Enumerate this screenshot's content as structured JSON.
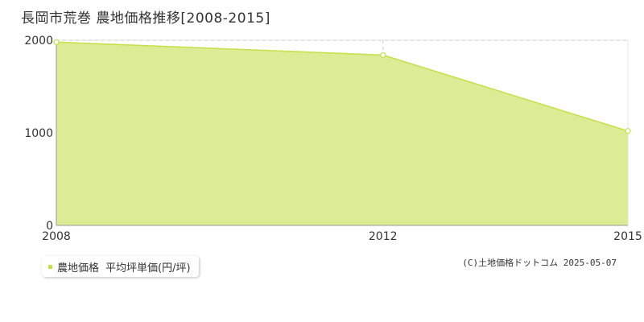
{
  "title": "長岡市荒巻 農地価格推移[2008-2015]",
  "colors": {
    "fill": "#dcec94",
    "line": "#c4e04a",
    "grid": "#cccccc",
    "axis": "#999999"
  },
  "chart_data": {
    "type": "area",
    "x": [
      2008,
      2012,
      2015
    ],
    "series": [
      {
        "name": "農地価格 平均坪単価(円/坪)",
        "values": [
          1980,
          1840,
          1020
        ]
      }
    ],
    "xticks": [
      "2008",
      "2012",
      "2015"
    ],
    "yticks": [
      "0",
      "1000",
      "2000"
    ],
    "ylim": [
      0,
      2000
    ],
    "xlim": [
      2008,
      2015
    ],
    "grid": true,
    "legend_position": "bottom-left"
  },
  "legend": {
    "category": "農地価格",
    "label": "平均坪単価(円/坪)"
  },
  "credit": "(C)土地価格ドットコム 2025-05-07"
}
